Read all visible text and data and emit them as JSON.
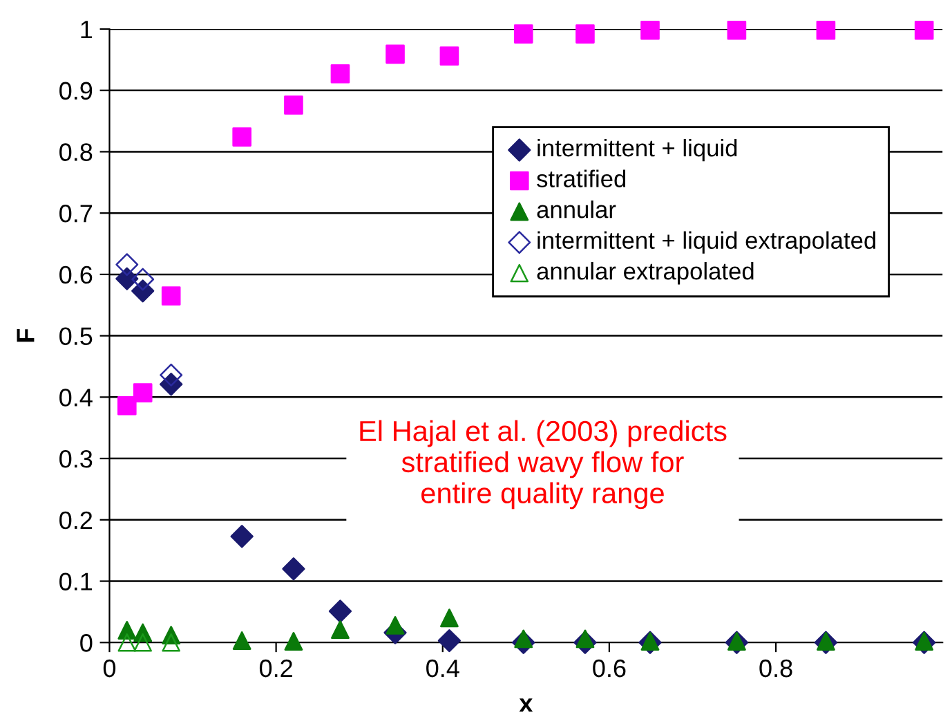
{
  "chart_data": {
    "type": "scatter",
    "xlabel": "x",
    "ylabel": "F",
    "xlim": [
      0,
      1
    ],
    "xticks": [
      0,
      0.2,
      0.4,
      0.6,
      0.8
    ],
    "ylim": [
      0,
      1
    ],
    "yticks": [
      0,
      0.1,
      0.2,
      0.3,
      0.4,
      0.5,
      0.6,
      0.7,
      0.8,
      0.9,
      1
    ],
    "grid": "y",
    "legend": "top right",
    "series": [
      {
        "name": "intermittent + liquid",
        "color": "#1a1a6e",
        "marker": "diamond",
        "x": [
          0.021,
          0.04,
          0.074,
          0.159,
          0.221,
          0.277,
          0.343,
          0.408,
          0.497,
          0.571,
          0.649,
          0.753,
          0.86,
          0.978
        ],
        "values": [
          0.593,
          0.573,
          0.421,
          0.173,
          0.12,
          0.051,
          0.016,
          0.003,
          0.0,
          0.0,
          0.0,
          0.0,
          0.0,
          0.0
        ]
      },
      {
        "name": "stratified",
        "color": "#ff00ff",
        "marker": "square",
        "x": [
          0.021,
          0.04,
          0.074,
          0.159,
          0.221,
          0.277,
          0.343,
          0.408,
          0.497,
          0.571,
          0.649,
          0.753,
          0.86,
          0.978
        ],
        "values": [
          0.386,
          0.407,
          0.565,
          0.824,
          0.876,
          0.927,
          0.959,
          0.956,
          0.992,
          0.992,
          0.998,
          0.998,
          0.998,
          0.998
        ]
      },
      {
        "name": "annular",
        "color": "#0a7a0a",
        "marker": "triangle",
        "x": [
          0.021,
          0.04,
          0.074,
          0.159,
          0.221,
          0.277,
          0.343,
          0.408,
          0.497,
          0.571,
          0.649,
          0.753,
          0.86,
          0.978
        ],
        "values": [
          0.02,
          0.016,
          0.012,
          0.003,
          0.002,
          0.021,
          0.028,
          0.04,
          0.006,
          0.006,
          0.002,
          0.002,
          0.002,
          0.002
        ]
      },
      {
        "name": "intermittent + liquid extrapolated",
        "color": "#2a2a9e",
        "marker": "diamond",
        "x": [
          0.021,
          0.04,
          0.074
        ],
        "values": [
          0.616,
          0.592,
          0.436
        ]
      },
      {
        "name": "annular extrapolated",
        "color": "#1a9a1a",
        "marker": "triangle",
        "x": [
          0.021,
          0.04,
          0.074
        ],
        "values": [
          0.0,
          0.0,
          0.0
        ]
      }
    ],
    "annotations": [
      "El Hajal et al. (2003) predicts\nstratified wavy flow for\nentire quality range"
    ]
  }
}
